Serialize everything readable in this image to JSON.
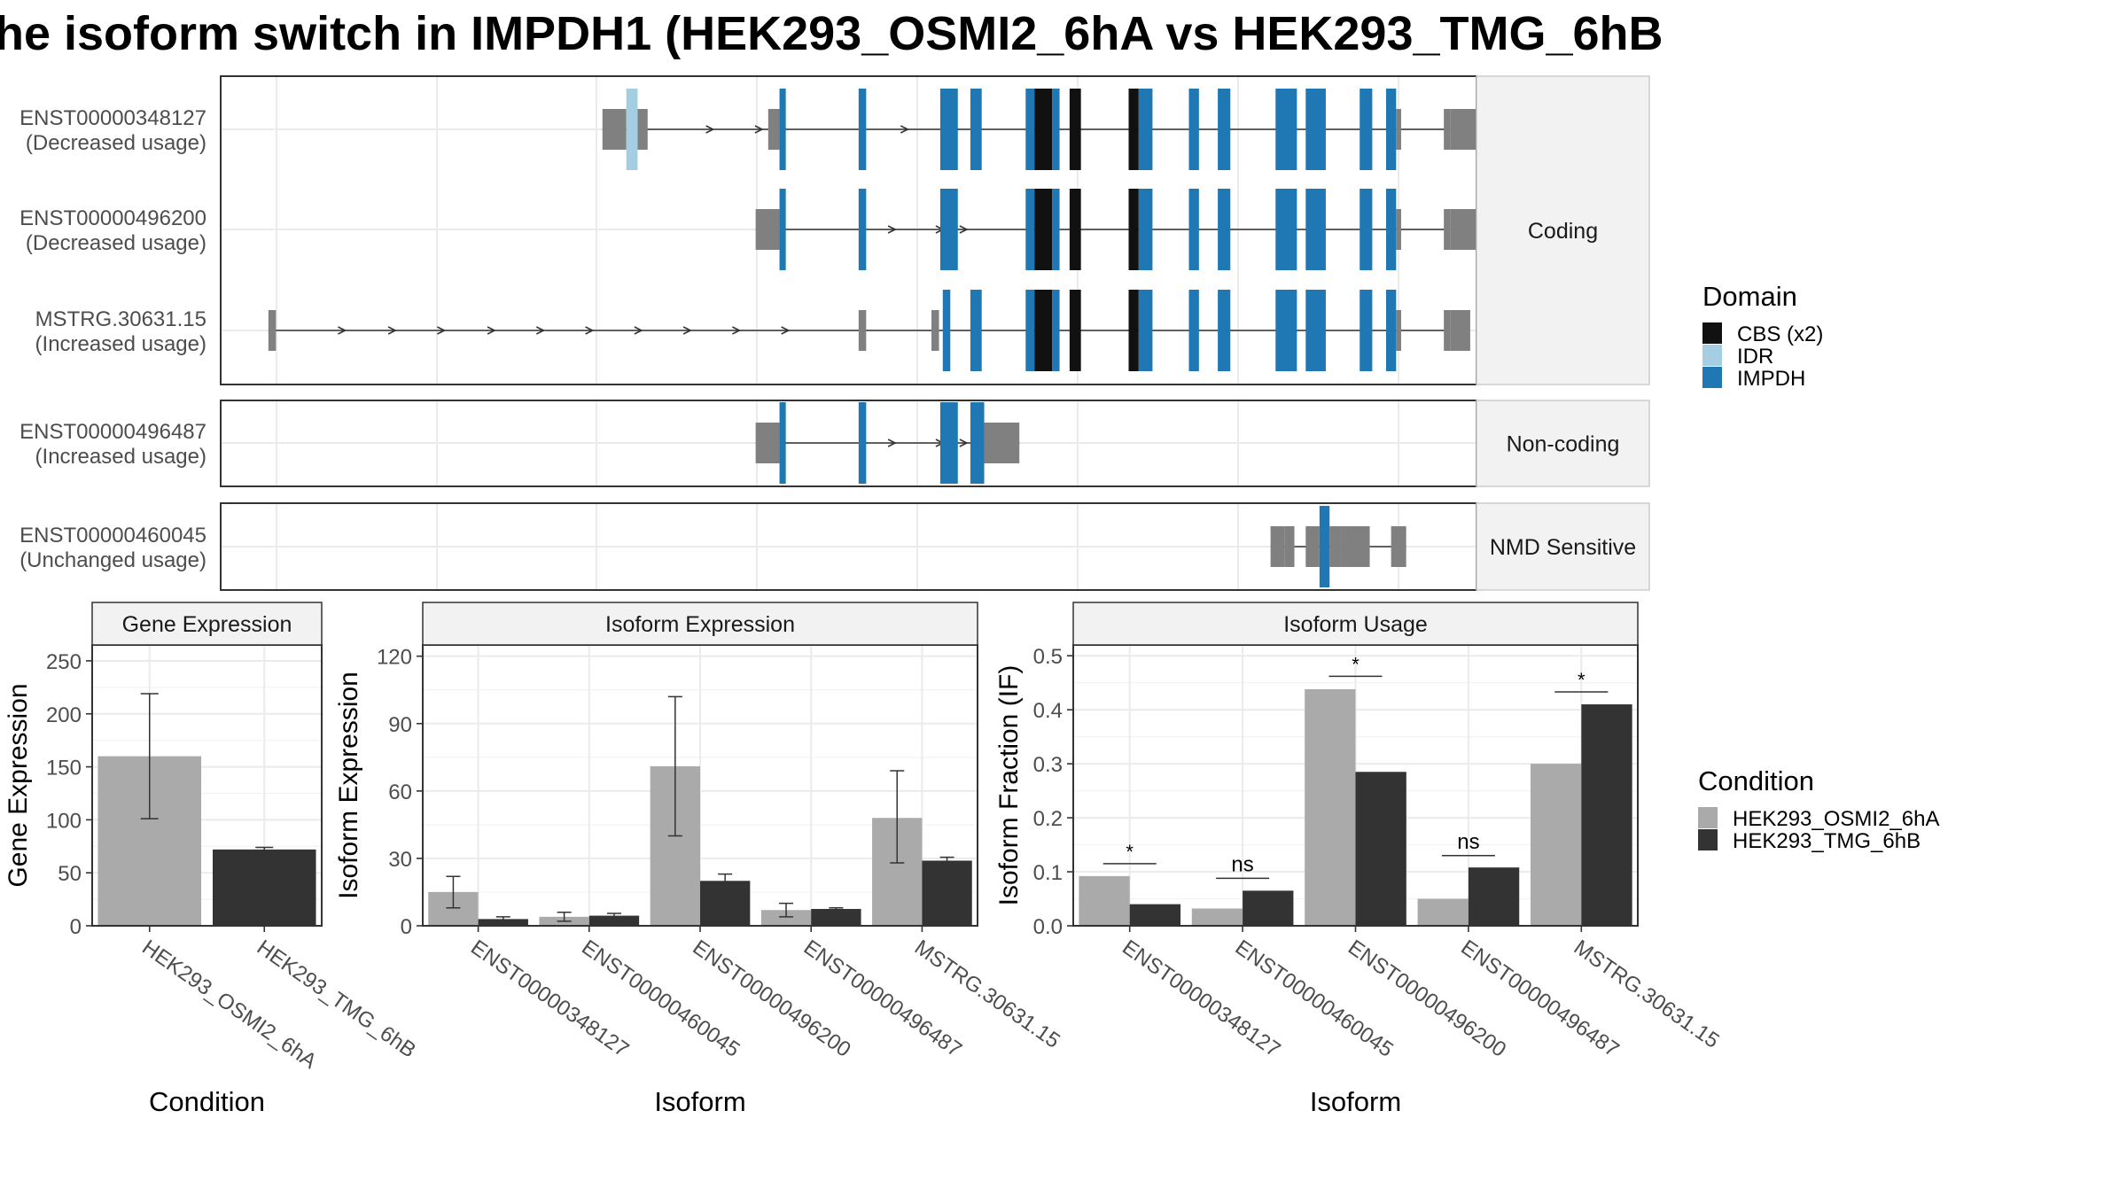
{
  "title": "he isoform switch in IMPDH1 (HEK293_OSMI2_6hA vs HEK293_TMG_6hB",
  "colors": {
    "cbs": "#111111",
    "idr": "#a6cee3",
    "impdh": "#1f78b4",
    "utr": "#808080",
    "condA": "#aaaaaa",
    "condB": "#333333",
    "grid": "#ebebeb",
    "strip": "#f2f2f2"
  },
  "structure": {
    "xlim": [
      0,
      1000
    ],
    "panels": [
      {
        "label": "Coding",
        "isoforms": [
          {
            "id": "ENST00000348127",
            "usage": "(Decreased usage)",
            "intron": [
              304,
              979
            ],
            "arrows": [
              390,
              429,
              545,
              585
            ],
            "segments": [
              {
                "s": 304,
                "e": 323,
                "t": "utr"
              },
              {
                "s": 323,
                "e": 332,
                "t": "idr"
              },
              {
                "s": 332,
                "e": 340,
                "t": "utr"
              },
              {
                "s": 436,
                "e": 445,
                "t": "utr"
              },
              {
                "s": 445,
                "e": 450,
                "t": "impdh"
              },
              {
                "s": 508,
                "e": 514,
                "t": "impdh"
              },
              {
                "s": 573,
                "e": 587,
                "t": "impdh"
              },
              {
                "s": 597,
                "e": 606,
                "t": "impdh"
              },
              {
                "s": 641,
                "e": 648,
                "t": "impdh"
              },
              {
                "s": 648,
                "e": 662,
                "t": "cbs"
              },
              {
                "s": 662,
                "e": 668,
                "t": "impdh"
              },
              {
                "s": 676,
                "e": 685,
                "t": "cbs"
              },
              {
                "s": 723,
                "e": 731,
                "t": "cbs"
              },
              {
                "s": 731,
                "e": 742,
                "t": "impdh"
              },
              {
                "s": 771,
                "e": 779,
                "t": "impdh"
              },
              {
                "s": 794,
                "e": 804,
                "t": "impdh"
              },
              {
                "s": 840,
                "e": 857,
                "t": "impdh"
              },
              {
                "s": 864,
                "e": 880,
                "t": "impdh"
              },
              {
                "s": 907,
                "e": 917,
                "t": "impdh"
              },
              {
                "s": 928,
                "e": 936,
                "t": "impdh"
              },
              {
                "s": 936,
                "e": 940,
                "t": "utr"
              },
              {
                "s": 974,
                "e": 979,
                "t": "utr"
              },
              {
                "s": 979,
                "e": 1012,
                "t": "utr"
              }
            ]
          },
          {
            "id": "ENST00000496200",
            "usage": "(Decreased usage)",
            "intron": [
              426,
              979
            ],
            "arrows": [
              535,
              573,
              592
            ],
            "segments": [
              {
                "s": 426,
                "e": 445,
                "t": "utr"
              },
              {
                "s": 445,
                "e": 450,
                "t": "impdh"
              },
              {
                "s": 508,
                "e": 514,
                "t": "impdh"
              },
              {
                "s": 573,
                "e": 587,
                "t": "impdh"
              },
              {
                "s": 641,
                "e": 648,
                "t": "impdh"
              },
              {
                "s": 648,
                "e": 662,
                "t": "cbs"
              },
              {
                "s": 662,
                "e": 668,
                "t": "impdh"
              },
              {
                "s": 676,
                "e": 685,
                "t": "cbs"
              },
              {
                "s": 723,
                "e": 731,
                "t": "cbs"
              },
              {
                "s": 731,
                "e": 742,
                "t": "impdh"
              },
              {
                "s": 771,
                "e": 779,
                "t": "impdh"
              },
              {
                "s": 794,
                "e": 804,
                "t": "impdh"
              },
              {
                "s": 840,
                "e": 857,
                "t": "impdh"
              },
              {
                "s": 864,
                "e": 880,
                "t": "impdh"
              },
              {
                "s": 907,
                "e": 917,
                "t": "impdh"
              },
              {
                "s": 928,
                "e": 936,
                "t": "impdh"
              },
              {
                "s": 936,
                "e": 940,
                "t": "utr"
              },
              {
                "s": 974,
                "e": 979,
                "t": "utr"
              },
              {
                "s": 979,
                "e": 1017,
                "t": "utr"
              }
            ]
          },
          {
            "id": "MSTRG.30631.15",
            "usage": "(Increased usage)",
            "intron": [
              38,
              979
            ],
            "arrows": [
              97,
              137,
              176,
              216,
              255,
              294,
              333,
              372,
              411,
              450
            ],
            "segments": [
              {
                "s": 38,
                "e": 44,
                "t": "utr"
              },
              {
                "s": 508,
                "e": 514,
                "t": "utr"
              },
              {
                "s": 566,
                "e": 572,
                "t": "utr"
              },
              {
                "s": 575,
                "e": 581,
                "t": "impdh"
              },
              {
                "s": 597,
                "e": 606,
                "t": "impdh"
              },
              {
                "s": 641,
                "e": 648,
                "t": "impdh"
              },
              {
                "s": 648,
                "e": 662,
                "t": "cbs"
              },
              {
                "s": 662,
                "e": 668,
                "t": "impdh"
              },
              {
                "s": 676,
                "e": 685,
                "t": "cbs"
              },
              {
                "s": 723,
                "e": 731,
                "t": "cbs"
              },
              {
                "s": 731,
                "e": 742,
                "t": "impdh"
              },
              {
                "s": 771,
                "e": 779,
                "t": "impdh"
              },
              {
                "s": 794,
                "e": 804,
                "t": "impdh"
              },
              {
                "s": 840,
                "e": 857,
                "t": "impdh"
              },
              {
                "s": 864,
                "e": 880,
                "t": "impdh"
              },
              {
                "s": 907,
                "e": 917,
                "t": "impdh"
              },
              {
                "s": 928,
                "e": 936,
                "t": "impdh"
              },
              {
                "s": 936,
                "e": 940,
                "t": "utr"
              },
              {
                "s": 974,
                "e": 979,
                "t": "utr"
              },
              {
                "s": 979,
                "e": 995,
                "t": "utr"
              }
            ]
          }
        ]
      },
      {
        "label": "Non-coding",
        "isoforms": [
          {
            "id": "ENST00000496487",
            "usage": "(Increased usage)",
            "intron": [
              426,
              636
            ],
            "arrows": [
              535,
              573,
              592
            ],
            "segments": [
              {
                "s": 426,
                "e": 445,
                "t": "utr"
              },
              {
                "s": 445,
                "e": 450,
                "t": "impdh"
              },
              {
                "s": 508,
                "e": 514,
                "t": "impdh"
              },
              {
                "s": 573,
                "e": 587,
                "t": "impdh"
              },
              {
                "s": 597,
                "e": 608,
                "t": "impdh"
              },
              {
                "s": 608,
                "e": 636,
                "t": "utr"
              }
            ]
          }
        ]
      },
      {
        "label": "NMD Sensitive",
        "isoforms": [
          {
            "id": "ENST00000460045",
            "usage": "(Unchanged usage)",
            "intron": [
              836,
              944
            ],
            "arrows": [],
            "segments": [
              {
                "s": 836,
                "e": 847,
                "t": "utr"
              },
              {
                "s": 847,
                "e": 855,
                "t": "utr"
              },
              {
                "s": 864,
                "e": 875,
                "t": "utr"
              },
              {
                "s": 875,
                "e": 883,
                "t": "impdh"
              },
              {
                "s": 883,
                "e": 892,
                "t": "utr"
              },
              {
                "s": 892,
                "e": 915,
                "t": "utr"
              },
              {
                "s": 932,
                "e": 944,
                "t": "utr"
              }
            ]
          }
        ]
      }
    ]
  },
  "legend_domain": {
    "title": "Domain",
    "items": [
      {
        "label": "CBS (x2)",
        "color": "#111111"
      },
      {
        "label": "IDR",
        "color": "#a6cee3"
      },
      {
        "label": "IMPDH",
        "color": "#1f78b4"
      }
    ]
  },
  "legend_condition": {
    "title": "Condition",
    "items": [
      {
        "label": "HEK293_OSMI2_6hA",
        "color": "#aaaaaa"
      },
      {
        "label": "HEK293_TMG_6hB",
        "color": "#333333"
      }
    ]
  },
  "chart_data": [
    {
      "type": "bar",
      "title": "Gene Expression",
      "xlabel": "Condition",
      "ylabel": "Gene Expression",
      "ylim": [
        0,
        265
      ],
      "yticks": [
        0,
        50,
        100,
        150,
        200,
        250
      ],
      "categories": [
        "HEK293_OSMI2_6hA",
        "HEK293_TMG_6hB"
      ],
      "values": [
        160,
        72
      ],
      "errors": [
        [
          101,
          219
        ],
        [
          70,
          74
        ]
      ]
    },
    {
      "type": "bar",
      "title": "Isoform Expression",
      "xlabel": "Isoform",
      "ylabel": "Isoform Expression",
      "ylim": [
        0,
        125
      ],
      "yticks": [
        0,
        30,
        60,
        90,
        120
      ],
      "categories": [
        "ENST00000348127",
        "ENST00000460045",
        "ENST00000496200",
        "ENST00000496487",
        "MSTRG.30631.15"
      ],
      "series": [
        {
          "name": "HEK293_OSMI2_6hA",
          "values": [
            15,
            4,
            71,
            7,
            48
          ],
          "errors": [
            [
              8,
              22
            ],
            [
              2,
              6
            ],
            [
              40,
              102
            ],
            [
              4,
              10
            ],
            [
              28,
              69
            ]
          ]
        },
        {
          "name": "HEK293_TMG_6hB",
          "values": [
            3,
            4.5,
            20,
            7.5,
            29
          ],
          "errors": [
            [
              2,
              4
            ],
            [
              3.5,
              5.5
            ],
            [
              17,
              23
            ],
            [
              7,
              8
            ],
            [
              27.5,
              30.5
            ]
          ]
        }
      ]
    },
    {
      "type": "bar",
      "title": "Isoform Usage",
      "xlabel": "Isoform",
      "ylabel": "Isoform Fraction (IF)",
      "ylim": [
        0,
        0.52
      ],
      "yticks": [
        0.0,
        0.1,
        0.2,
        0.3,
        0.4,
        0.5
      ],
      "categories": [
        "ENST00000348127",
        "ENST00000460045",
        "ENST00000496200",
        "ENST00000496487",
        "MSTRG.30631.15"
      ],
      "series": [
        {
          "name": "HEK293_OSMI2_6hA",
          "values": [
            0.092,
            0.032,
            0.438,
            0.05,
            0.3
          ]
        },
        {
          "name": "HEK293_TMG_6hB",
          "values": [
            0.04,
            0.065,
            0.285,
            0.108,
            0.41
          ]
        }
      ],
      "significance": [
        {
          "label": "*",
          "y": 0.115
        },
        {
          "label": "ns",
          "y": 0.088
        },
        {
          "label": "*",
          "y": 0.462
        },
        {
          "label": "ns",
          "y": 0.13
        },
        {
          "label": "*",
          "y": 0.433
        }
      ]
    }
  ]
}
